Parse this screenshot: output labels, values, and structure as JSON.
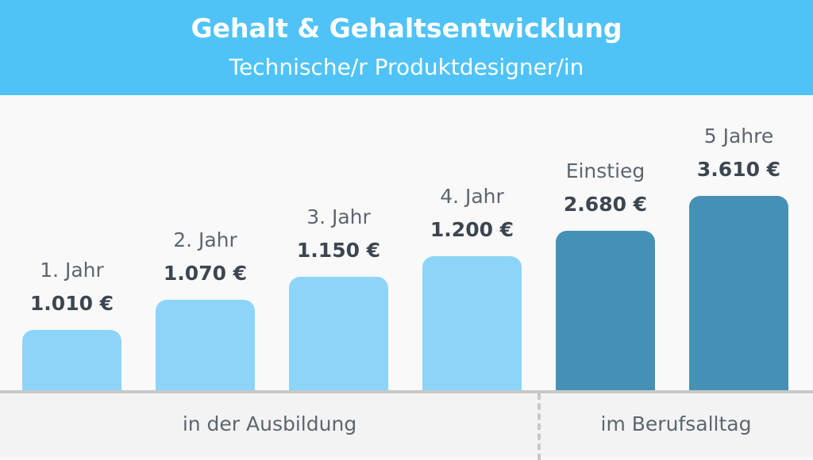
{
  "chart_data": {
    "type": "bar",
    "title": "Gehalt & Gehaltsentwicklung",
    "subtitle": "Technische/r Produktdesigner/in",
    "categories": [
      "1. Jahr",
      "2. Jahr",
      "3. Jahr",
      "4. Jahr",
      "Einstieg",
      "5 Jahre"
    ],
    "values": [
      1010,
      1070,
      1150,
      1200,
      2680,
      3610
    ],
    "value_labels": [
      "1.010 €",
      "1.070 €",
      "1.150 €",
      "1.200 €",
      "2.680 €",
      "3.610 €"
    ],
    "groups": [
      {
        "label": "in der Ausbildung",
        "categories": [
          0,
          1,
          2,
          3
        ],
        "color": "#8dd5f8"
      },
      {
        "label": "im Berufsalltag",
        "categories": [
          4,
          5
        ],
        "color": "#4591b5"
      }
    ],
    "header_color": "#4fc3f7"
  }
}
